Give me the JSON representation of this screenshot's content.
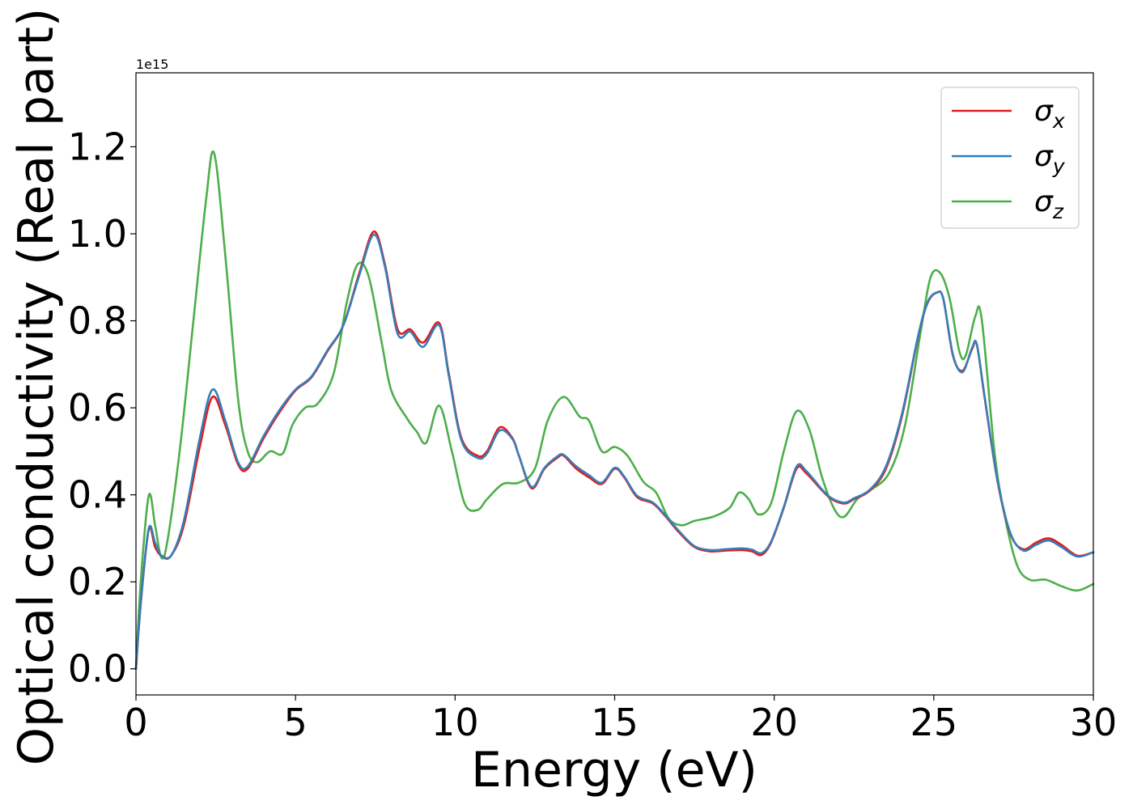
{
  "chart_data": {
    "type": "line",
    "xlabel": "Energy (eV)",
    "ylabel": "Optical conductivity (Real part)",
    "offset_label": "1e15",
    "xlim": [
      0,
      30
    ],
    "ylim": [
      -0.06,
      1.37
    ],
    "x_ticks": [
      0,
      5,
      10,
      15,
      20,
      25,
      30
    ],
    "y_ticks": [
      0.0,
      0.2,
      0.4,
      0.6,
      0.8,
      1.0,
      1.2
    ],
    "x_tick_labels": [
      "0",
      "5",
      "10",
      "15",
      "20",
      "25",
      "30"
    ],
    "y_tick_labels": [
      "0.0",
      "0.2",
      "0.4",
      "0.6",
      "0.8",
      "1.0",
      "1.2"
    ],
    "grid": false,
    "legend_position": "top-right",
    "series": [
      {
        "name": "σx",
        "legend_base": "σ",
        "legend_sub": "x",
        "color": "#e41a1c",
        "points": [
          [
            0,
            0
          ],
          [
            0.15,
            0.15
          ],
          [
            0.4,
            0.32
          ],
          [
            0.6,
            0.28
          ],
          [
            0.8,
            0.26
          ],
          [
            1.1,
            0.26
          ],
          [
            1.5,
            0.33
          ],
          [
            2.0,
            0.51
          ],
          [
            2.4,
            0.625
          ],
          [
            2.8,
            0.56
          ],
          [
            3.2,
            0.47
          ],
          [
            3.5,
            0.46
          ],
          [
            4.0,
            0.53
          ],
          [
            4.5,
            0.59
          ],
          [
            5.0,
            0.64
          ],
          [
            5.5,
            0.67
          ],
          [
            6.0,
            0.73
          ],
          [
            6.5,
            0.79
          ],
          [
            7.0,
            0.91
          ],
          [
            7.45,
            1.005
          ],
          [
            7.8,
            0.93
          ],
          [
            8.2,
            0.78
          ],
          [
            8.6,
            0.78
          ],
          [
            9.0,
            0.75
          ],
          [
            9.5,
            0.795
          ],
          [
            9.8,
            0.68
          ],
          [
            10.2,
            0.53
          ],
          [
            10.7,
            0.49
          ],
          [
            11.0,
            0.5
          ],
          [
            11.4,
            0.555
          ],
          [
            11.8,
            0.53
          ],
          [
            12.0,
            0.49
          ],
          [
            12.4,
            0.415
          ],
          [
            12.8,
            0.46
          ],
          [
            13.2,
            0.485
          ],
          [
            13.4,
            0.49
          ],
          [
            13.8,
            0.46
          ],
          [
            14.2,
            0.44
          ],
          [
            14.6,
            0.425
          ],
          [
            15.0,
            0.46
          ],
          [
            15.3,
            0.44
          ],
          [
            15.7,
            0.395
          ],
          [
            16.2,
            0.38
          ],
          [
            16.6,
            0.35
          ],
          [
            17.0,
            0.315
          ],
          [
            17.5,
            0.28
          ],
          [
            18.0,
            0.27
          ],
          [
            18.5,
            0.272
          ],
          [
            19.0,
            0.273
          ],
          [
            19.3,
            0.27
          ],
          [
            19.6,
            0.262
          ],
          [
            19.9,
            0.29
          ],
          [
            20.3,
            0.37
          ],
          [
            20.7,
            0.46
          ],
          [
            21.0,
            0.45
          ],
          [
            21.5,
            0.41
          ],
          [
            21.8,
            0.39
          ],
          [
            22.2,
            0.38
          ],
          [
            22.5,
            0.39
          ],
          [
            23.0,
            0.41
          ],
          [
            23.5,
            0.46
          ],
          [
            24.0,
            0.58
          ],
          [
            24.5,
            0.76
          ],
          [
            24.8,
            0.84
          ],
          [
            25.1,
            0.865
          ],
          [
            25.3,
            0.85
          ],
          [
            25.6,
            0.72
          ],
          [
            25.9,
            0.685
          ],
          [
            26.2,
            0.735
          ],
          [
            26.35,
            0.745
          ],
          [
            26.6,
            0.62
          ],
          [
            27.0,
            0.43
          ],
          [
            27.4,
            0.31
          ],
          [
            27.8,
            0.275
          ],
          [
            28.2,
            0.29
          ],
          [
            28.6,
            0.3
          ],
          [
            29.0,
            0.285
          ],
          [
            29.5,
            0.26
          ],
          [
            30.0,
            0.268
          ]
        ]
      },
      {
        "name": "σy",
        "legend_base": "σ",
        "legend_sub": "y",
        "color": "#377eb8",
        "points": [
          [
            0,
            0
          ],
          [
            0.15,
            0.15
          ],
          [
            0.4,
            0.322
          ],
          [
            0.6,
            0.29
          ],
          [
            0.8,
            0.26
          ],
          [
            1.1,
            0.26
          ],
          [
            1.5,
            0.34
          ],
          [
            2.0,
            0.53
          ],
          [
            2.4,
            0.642
          ],
          [
            2.8,
            0.57
          ],
          [
            3.2,
            0.475
          ],
          [
            3.5,
            0.465
          ],
          [
            4.0,
            0.535
          ],
          [
            4.5,
            0.595
          ],
          [
            5.0,
            0.642
          ],
          [
            5.5,
            0.672
          ],
          [
            6.0,
            0.732
          ],
          [
            6.5,
            0.79
          ],
          [
            7.0,
            0.905
          ],
          [
            7.45,
            0.998
          ],
          [
            7.8,
            0.925
          ],
          [
            8.2,
            0.77
          ],
          [
            8.6,
            0.775
          ],
          [
            9.0,
            0.74
          ],
          [
            9.5,
            0.79
          ],
          [
            9.8,
            0.675
          ],
          [
            10.2,
            0.525
          ],
          [
            10.7,
            0.485
          ],
          [
            11.0,
            0.495
          ],
          [
            11.4,
            0.548
          ],
          [
            11.8,
            0.528
          ],
          [
            12.0,
            0.49
          ],
          [
            12.4,
            0.418
          ],
          [
            12.8,
            0.462
          ],
          [
            13.2,
            0.488
          ],
          [
            13.4,
            0.492
          ],
          [
            13.8,
            0.465
          ],
          [
            14.2,
            0.445
          ],
          [
            14.6,
            0.428
          ],
          [
            15.0,
            0.462
          ],
          [
            15.3,
            0.442
          ],
          [
            15.7,
            0.398
          ],
          [
            16.2,
            0.382
          ],
          [
            16.6,
            0.352
          ],
          [
            17.0,
            0.318
          ],
          [
            17.5,
            0.282
          ],
          [
            18.0,
            0.273
          ],
          [
            18.5,
            0.275
          ],
          [
            19.0,
            0.277
          ],
          [
            19.3,
            0.274
          ],
          [
            19.6,
            0.266
          ],
          [
            19.9,
            0.292
          ],
          [
            20.3,
            0.372
          ],
          [
            20.7,
            0.465
          ],
          [
            21.0,
            0.455
          ],
          [
            21.5,
            0.412
          ],
          [
            21.8,
            0.392
          ],
          [
            22.2,
            0.382
          ],
          [
            22.5,
            0.392
          ],
          [
            23.0,
            0.412
          ],
          [
            23.5,
            0.465
          ],
          [
            24.0,
            0.585
          ],
          [
            24.5,
            0.762
          ],
          [
            24.8,
            0.842
          ],
          [
            25.1,
            0.865
          ],
          [
            25.3,
            0.85
          ],
          [
            25.6,
            0.722
          ],
          [
            25.9,
            0.682
          ],
          [
            26.2,
            0.738
          ],
          [
            26.35,
            0.745
          ],
          [
            26.6,
            0.622
          ],
          [
            27.0,
            0.432
          ],
          [
            27.4,
            0.312
          ],
          [
            27.8,
            0.272
          ],
          [
            28.2,
            0.285
          ],
          [
            28.6,
            0.295
          ],
          [
            29.0,
            0.28
          ],
          [
            29.5,
            0.258
          ],
          [
            30.0,
            0.268
          ]
        ]
      },
      {
        "name": "σz",
        "legend_base": "σ",
        "legend_sub": "z",
        "color": "#4daf4a",
        "points": [
          [
            0,
            0
          ],
          [
            0.15,
            0.2
          ],
          [
            0.4,
            0.398
          ],
          [
            0.6,
            0.33
          ],
          [
            0.8,
            0.255
          ],
          [
            1.0,
            0.3
          ],
          [
            1.4,
            0.52
          ],
          [
            1.8,
            0.8
          ],
          [
            2.2,
            1.08
          ],
          [
            2.45,
            1.185
          ],
          [
            2.8,
            0.95
          ],
          [
            3.2,
            0.62
          ],
          [
            3.5,
            0.5
          ],
          [
            3.8,
            0.475
          ],
          [
            4.2,
            0.5
          ],
          [
            4.6,
            0.495
          ],
          [
            4.9,
            0.56
          ],
          [
            5.3,
            0.6
          ],
          [
            5.7,
            0.61
          ],
          [
            6.2,
            0.68
          ],
          [
            6.6,
            0.84
          ],
          [
            6.95,
            0.93
          ],
          [
            7.3,
            0.9
          ],
          [
            7.7,
            0.75
          ],
          [
            8.0,
            0.64
          ],
          [
            8.5,
            0.575
          ],
          [
            8.8,
            0.545
          ],
          [
            9.1,
            0.52
          ],
          [
            9.5,
            0.605
          ],
          [
            9.9,
            0.5
          ],
          [
            10.3,
            0.38
          ],
          [
            10.7,
            0.365
          ],
          [
            11.0,
            0.39
          ],
          [
            11.5,
            0.425
          ],
          [
            12.0,
            0.428
          ],
          [
            12.5,
            0.46
          ],
          [
            12.9,
            0.57
          ],
          [
            13.4,
            0.625
          ],
          [
            13.9,
            0.58
          ],
          [
            14.2,
            0.57
          ],
          [
            14.6,
            0.5
          ],
          [
            15.0,
            0.51
          ],
          [
            15.4,
            0.49
          ],
          [
            15.9,
            0.43
          ],
          [
            16.3,
            0.405
          ],
          [
            16.7,
            0.345
          ],
          [
            17.1,
            0.33
          ],
          [
            17.5,
            0.34
          ],
          [
            18.1,
            0.35
          ],
          [
            18.6,
            0.37
          ],
          [
            18.9,
            0.405
          ],
          [
            19.2,
            0.39
          ],
          [
            19.5,
            0.355
          ],
          [
            19.9,
            0.38
          ],
          [
            20.3,
            0.5
          ],
          [
            20.7,
            0.592
          ],
          [
            21.1,
            0.55
          ],
          [
            21.5,
            0.44
          ],
          [
            21.9,
            0.365
          ],
          [
            22.2,
            0.35
          ],
          [
            22.6,
            0.39
          ],
          [
            23.0,
            0.41
          ],
          [
            23.6,
            0.45
          ],
          [
            24.1,
            0.56
          ],
          [
            24.6,
            0.78
          ],
          [
            24.9,
            0.9
          ],
          [
            25.2,
            0.91
          ],
          [
            25.5,
            0.85
          ],
          [
            25.8,
            0.73
          ],
          [
            26.0,
            0.72
          ],
          [
            26.3,
            0.81
          ],
          [
            26.5,
            0.805
          ],
          [
            26.9,
            0.5
          ],
          [
            27.2,
            0.36
          ],
          [
            27.6,
            0.24
          ],
          [
            28.0,
            0.205
          ],
          [
            28.5,
            0.205
          ],
          [
            29.0,
            0.19
          ],
          [
            29.5,
            0.18
          ],
          [
            30.0,
            0.195
          ]
        ]
      }
    ]
  }
}
